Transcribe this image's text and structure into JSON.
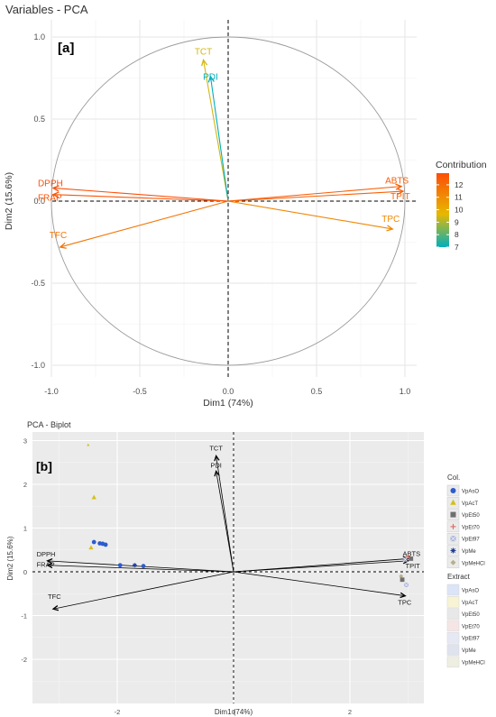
{
  "chart_data": [
    {
      "type": "pca-variables",
      "title": "Variables - PCA",
      "panel_label": "[a]",
      "xlabel": "Dim1 (74%)",
      "ylabel": "Dim2 (15.6%)",
      "xlim": [
        -1.1,
        1.1
      ],
      "ylim": [
        -1.1,
        1.1
      ],
      "x_ticks": [
        "-1.0",
        "-0.5",
        "0.0",
        "0.5",
        "1.0"
      ],
      "y_ticks": [
        "-1.0",
        "-0.5",
        "0.0",
        "0.5",
        "1.0"
      ],
      "grid": true,
      "unit_circle": true,
      "vectors": [
        {
          "label": "TCT",
          "x": -0.14,
          "y": 0.86,
          "contrib": 9.5
        },
        {
          "label": "PDI",
          "x": -0.1,
          "y": 0.76,
          "contrib": 7.0
        },
        {
          "label": "DPPH",
          "x": -0.99,
          "y": 0.08,
          "contrib": 12.5
        },
        {
          "label": "FRAP",
          "x": -0.99,
          "y": 0.04,
          "contrib": 12.3
        },
        {
          "label": "ABTS",
          "x": 0.98,
          "y": 0.09,
          "contrib": 12.1
        },
        {
          "label": "TPC",
          "x": 0.93,
          "y": -0.17,
          "contrib": 11.0
        },
        {
          "label": "TFC",
          "x": -0.95,
          "y": -0.28,
          "contrib": 11.5
        },
        {
          "label": "TPIT",
          "x": 0.99,
          "y": 0.06,
          "contrib": 12.0
        }
      ],
      "legend": {
        "title": "Contribution",
        "position": "right",
        "ticks": [
          "12",
          "11",
          "10",
          "9",
          "8",
          "7"
        ],
        "colors": [
          "#FC4E07",
          "#E7B800",
          "#00AFBB"
        ]
      }
    },
    {
      "type": "pca-biplot",
      "title": "PCA - Biplot",
      "panel_label": "[b]",
      "xlabel": "Dim1 (74%)",
      "ylabel": "Dim2 (15.6%)",
      "xlim": [
        -3.1,
        3.1
      ],
      "ylim": [
        -2.7,
        3.3
      ],
      "x_ticks": [
        "-2",
        "0",
        "2"
      ],
      "y_ticks": [
        "3",
        "2",
        "1",
        "0",
        "-1",
        "-2"
      ],
      "grid": true,
      "vectors": [
        {
          "label": "TCT",
          "x": -0.3,
          "y": 2.65
        },
        {
          "label": "PDI",
          "x": -0.3,
          "y": 2.3
        },
        {
          "label": "DPPH",
          "x": -3.2,
          "y": 0.25
        },
        {
          "label": "FRAP",
          "x": -3.2,
          "y": 0.15
        },
        {
          "label": "TFC",
          "x": -3.1,
          "y": -0.85
        },
        {
          "label": "TPC",
          "x": 2.95,
          "y": -0.55
        },
        {
          "label": "ABTS",
          "x": 3.0,
          "y": 0.3
        },
        {
          "label": "TPIT",
          "x": 3.0,
          "y": 0.25
        }
      ],
      "points": [
        {
          "group": "VpAcT",
          "x": -2.5,
          "y": 2.9
        },
        {
          "group": "VpAcT",
          "x": -2.4,
          "y": 1.7
        },
        {
          "group": "VpAcT",
          "x": -2.45,
          "y": 0.55
        },
        {
          "group": "VpAsO",
          "x": -2.4,
          "y": 0.68
        },
        {
          "group": "VpAsO",
          "x": -2.3,
          "y": 0.65
        },
        {
          "group": "VpAsO",
          "x": -2.25,
          "y": 0.64
        },
        {
          "group": "VpAsO",
          "x": -2.2,
          "y": 0.62
        },
        {
          "group": "VpAsO",
          "x": -1.95,
          "y": 0.15
        },
        {
          "group": "VpAsO",
          "x": -1.55,
          "y": 0.13
        },
        {
          "group": "VpMe",
          "x": -1.7,
          "y": 0.15
        },
        {
          "group": "VpEt70",
          "x": 3.0,
          "y": 0.35
        },
        {
          "group": "VpEt50",
          "x": 3.05,
          "y": 0.3
        },
        {
          "group": "VpEt97",
          "x": 2.95,
          "y": 0.28
        },
        {
          "group": "VpMeHCl",
          "x": 2.88,
          "y": -0.1
        },
        {
          "group": "VpEt50",
          "x": 2.9,
          "y": -0.18
        },
        {
          "group": "VpEt97",
          "x": 2.97,
          "y": -0.3
        }
      ],
      "legend_col": {
        "title": "Col.",
        "items": [
          {
            "name": "VpAsO",
            "color": "#2E5BCC",
            "symbol": "circle"
          },
          {
            "name": "VpAcT",
            "color": "#D4BF1A",
            "symbol": "triangle"
          },
          {
            "name": "VpEt50",
            "color": "#6F6F6F",
            "symbol": "square"
          },
          {
            "name": "VpEt70",
            "color": "#E06666",
            "symbol": "plus"
          },
          {
            "name": "VpEt97",
            "color": "#9AA7D6",
            "symbol": "square-x"
          },
          {
            "name": "VpMe",
            "color": "#1F3E99",
            "symbol": "asterisk"
          },
          {
            "name": "VpMeHCl",
            "color": "#B7B08A",
            "symbol": "diamond"
          }
        ]
      },
      "legend_extract": {
        "title": "Extract",
        "items": [
          {
            "name": "VpAsO",
            "color": "#DCE4F7"
          },
          {
            "name": "VpAcT",
            "color": "#F7F3D4"
          },
          {
            "name": "VpEt50",
            "color": "#E8E8E8"
          },
          {
            "name": "VpEt70",
            "color": "#F6E5E5"
          },
          {
            "name": "VpEt97",
            "color": "#E6E9F4"
          },
          {
            "name": "VpMe",
            "color": "#DEE3EE"
          },
          {
            "name": "VpMeHCl",
            "color": "#EFEEE2"
          }
        ]
      }
    }
  ]
}
